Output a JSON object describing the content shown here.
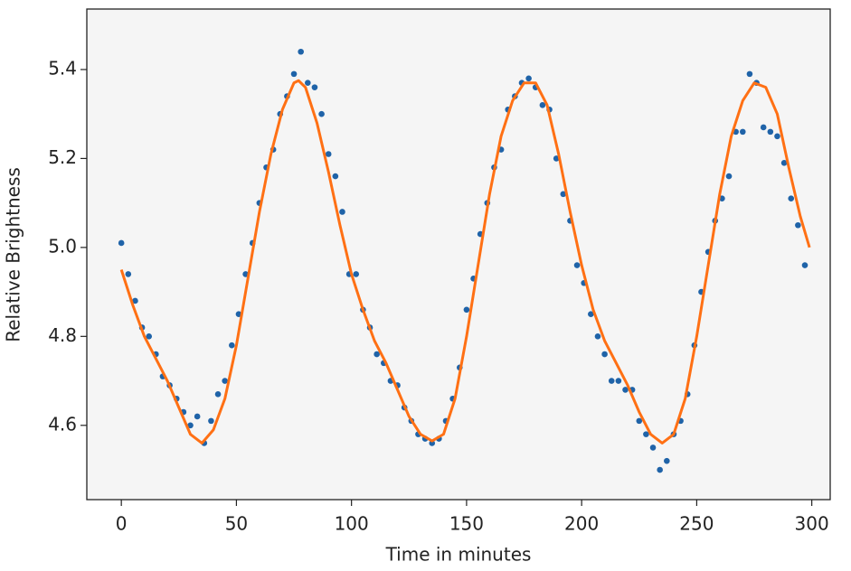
{
  "chart_data": {
    "type": "scatter",
    "xlabel": "Time in minutes",
    "ylabel": "Relative Brightness",
    "xlim": [
      -15,
      308
    ],
    "ylim": [
      4.433,
      5.536
    ],
    "xticks": [
      0,
      50,
      100,
      150,
      200,
      250,
      300
    ],
    "yticks": [
      4.6,
      4.8,
      {
        "value": 5,
        "label": "5.0"
      },
      5.2,
      5.4
    ],
    "background": "#f5f5f5",
    "series": [
      {
        "type": "scatter",
        "color": "#1f63a8",
        "x": [
          0,
          3,
          6,
          9,
          12,
          15,
          18,
          21,
          24,
          27,
          30,
          33,
          36,
          39,
          42,
          45,
          48,
          51,
          54,
          57,
          60,
          63,
          66,
          69,
          72,
          75,
          78,
          81,
          84,
          87,
          90,
          93,
          96,
          99,
          102,
          105,
          108,
          111,
          114,
          117,
          120,
          123,
          126,
          129,
          132,
          135,
          138,
          141,
          144,
          147,
          150,
          153,
          156,
          159,
          162,
          165,
          168,
          171,
          174,
          177,
          180,
          183,
          186,
          189,
          192,
          195,
          198,
          201,
          204,
          207,
          210,
          213,
          216,
          219,
          222,
          225,
          228,
          231,
          234,
          237,
          240,
          243,
          246,
          249,
          252,
          255,
          258,
          261,
          264,
          267,
          270,
          273,
          276,
          279,
          282,
          285,
          288,
          291,
          294,
          297
        ],
        "values": [
          5.01,
          4.94,
          4.88,
          4.82,
          4.8,
          4.76,
          4.71,
          4.69,
          4.66,
          4.63,
          4.6,
          4.62,
          4.56,
          4.61,
          4.67,
          4.7,
          4.78,
          4.85,
          4.94,
          5.01,
          5.1,
          5.18,
          5.22,
          5.3,
          5.34,
          5.39,
          5.44,
          5.37,
          5.36,
          5.3,
          5.21,
          5.16,
          5.08,
          4.94,
          4.94,
          4.86,
          4.82,
          4.76,
          4.74,
          4.7,
          4.69,
          4.64,
          4.61,
          4.58,
          4.57,
          4.56,
          4.57,
          4.61,
          4.66,
          4.73,
          4.86,
          4.93,
          5.03,
          5.1,
          5.18,
          5.22,
          5.31,
          5.34,
          5.37,
          5.38,
          5.36,
          5.32,
          5.31,
          5.2,
          5.12,
          5.06,
          4.96,
          4.92,
          4.85,
          4.8,
          4.76,
          4.7,
          4.7,
          4.68,
          4.68,
          4.61,
          4.58,
          4.55,
          4.5,
          4.52,
          4.58,
          4.61,
          4.67,
          4.78,
          4.9,
          4.99,
          5.06,
          5.11,
          5.16,
          5.26,
          5.26,
          5.39,
          5.37,
          5.27,
          5.26,
          5.25,
          5.19,
          5.11,
          5.05,
          4.96
        ]
      },
      {
        "type": "line",
        "color": "#ff7014",
        "x": [
          0,
          5,
          10,
          15,
          20,
          25,
          30,
          35,
          40,
          45,
          50,
          55,
          60,
          65,
          70,
          75,
          77,
          80,
          85,
          90,
          95,
          100,
          105,
          110,
          115,
          120,
          125,
          130,
          135,
          140,
          145,
          150,
          155,
          160,
          165,
          170,
          175,
          180,
          185,
          190,
          195,
          200,
          205,
          210,
          215,
          220,
          225,
          230,
          235,
          240,
          245,
          250,
          255,
          260,
          265,
          270,
          275,
          280,
          285,
          290,
          295,
          299
        ],
        "values": [
          4.95,
          4.87,
          4.8,
          4.75,
          4.7,
          4.64,
          4.58,
          4.56,
          4.59,
          4.66,
          4.78,
          4.93,
          5.08,
          5.21,
          5.31,
          5.37,
          5.375,
          5.36,
          5.28,
          5.17,
          5.05,
          4.94,
          4.86,
          4.79,
          4.74,
          4.68,
          4.62,
          4.58,
          4.565,
          4.58,
          4.66,
          4.8,
          4.96,
          5.12,
          5.25,
          5.33,
          5.37,
          5.37,
          5.32,
          5.21,
          5.08,
          4.96,
          4.86,
          4.79,
          4.74,
          4.69,
          4.63,
          4.58,
          4.56,
          4.58,
          4.66,
          4.8,
          4.96,
          5.12,
          5.25,
          5.33,
          5.37,
          5.36,
          5.3,
          5.18,
          5.07,
          5.0
        ]
      }
    ]
  }
}
